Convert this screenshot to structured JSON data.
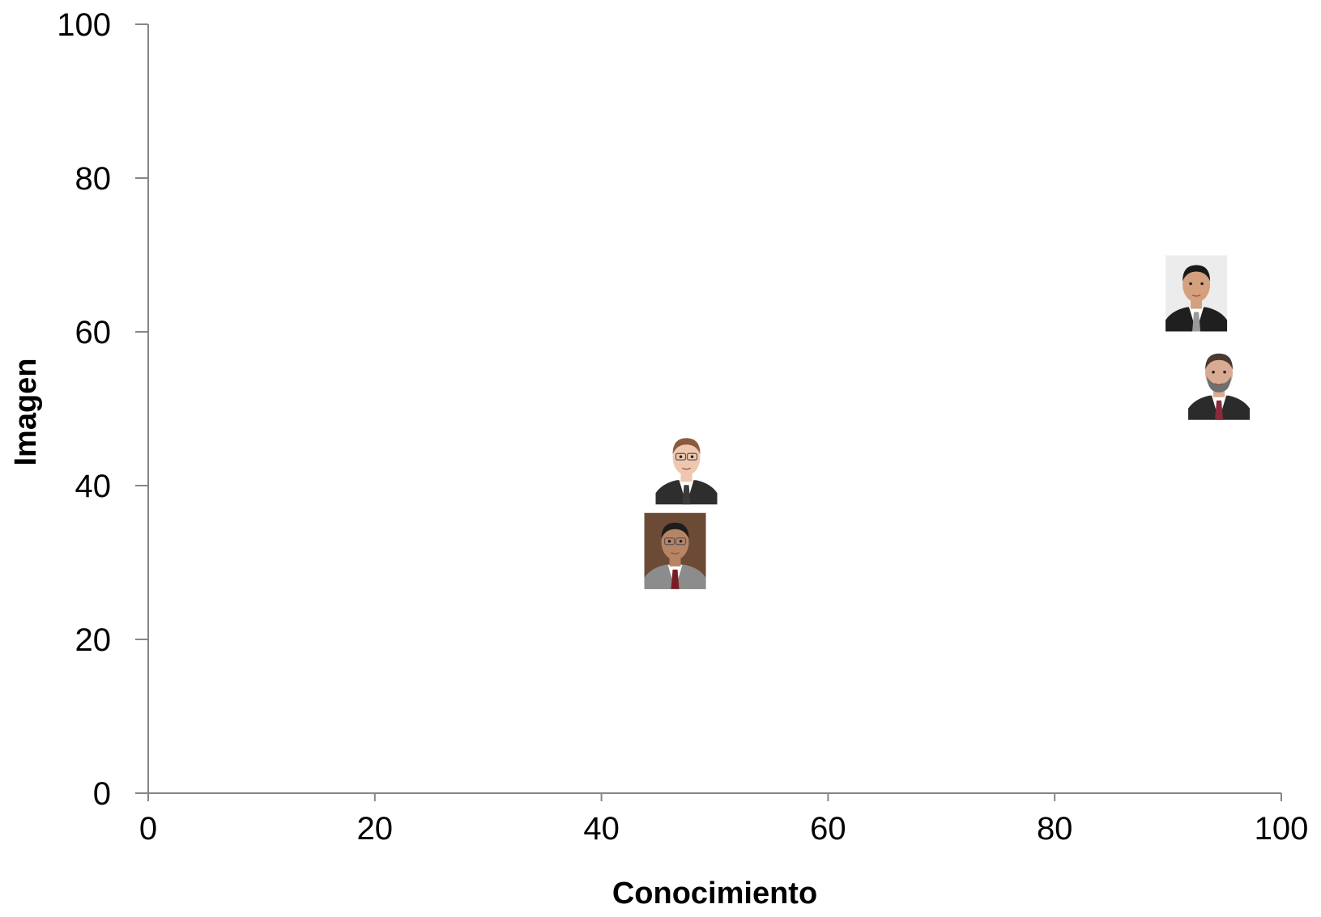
{
  "chart_data": {
    "type": "scatter",
    "title": "",
    "xlabel": "Conocimiento",
    "ylabel": "Imagen",
    "xlim": [
      0,
      100
    ],
    "ylim": [
      0,
      100
    ],
    "x_ticks": [
      "0",
      "20",
      "40",
      "60",
      "80",
      "100"
    ],
    "y_ticks": [
      "0",
      "20",
      "40",
      "60",
      "80",
      "100"
    ],
    "grid": false,
    "legend": "none",
    "marker": "portrait-photo",
    "points": [
      {
        "x": 47.5,
        "y": 42.5,
        "portrait": "young man, glasses, dark suit, white background"
      },
      {
        "x": 46.5,
        "y": 31.5,
        "portrait": "man, glasses, gray suit, red tie, brown background"
      },
      {
        "x": 92.5,
        "y": 65.0,
        "portrait": "man, dark suit, striped tie, light background"
      },
      {
        "x": 94.5,
        "y": 53.5,
        "portrait": "bearded man, dark suit, red tie, white background"
      }
    ],
    "colors": {
      "axis": "#868686",
      "text": "#000000",
      "background": "#ffffff"
    }
  }
}
